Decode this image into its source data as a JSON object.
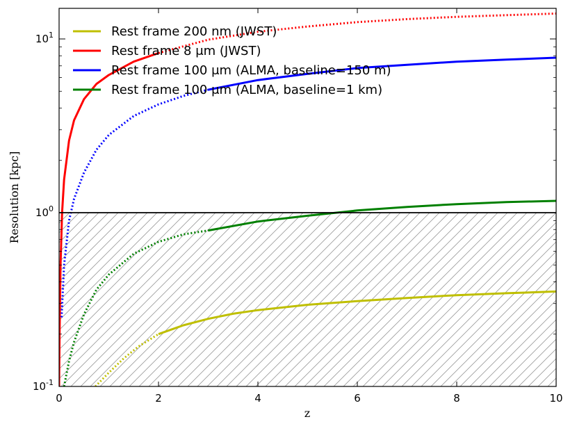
{
  "chart_data": {
    "type": "line",
    "xlabel": "z",
    "ylabel": "Resolution [kpc]",
    "xlim": [
      0,
      10
    ],
    "ylim": [
      0.1,
      15
    ],
    "yscale": "log",
    "x_ticks": [
      "0",
      "2",
      "4",
      "6",
      "8",
      "10"
    ],
    "y_ticks": [
      {
        "base": "10",
        "exp": "-1"
      },
      {
        "base": "10",
        "exp": "0"
      },
      {
        "base": "10",
        "exp": "1"
      }
    ],
    "reference_line_y": 1,
    "hatched_region": "below 1 kpc",
    "legend_position": "top-left",
    "series": [
      {
        "name": "Rest frame 200 nm (JWST)",
        "color": "#bfbf00",
        "dotted_x": [
          0.73,
          1.0,
          1.3,
          1.6,
          2.0
        ],
        "dotted_y": [
          0.1,
          0.12,
          0.145,
          0.17,
          0.2
        ],
        "solid_x": [
          2.0,
          2.5,
          3.0,
          3.5,
          4.0,
          5.0,
          6.0,
          7.0,
          8.0,
          9.0,
          10.0
        ],
        "solid_y": [
          0.2,
          0.225,
          0.245,
          0.262,
          0.275,
          0.295,
          0.31,
          0.323,
          0.335,
          0.344,
          0.352
        ]
      },
      {
        "name": "Rest frame 8 μm (JWST)",
        "color": "#ff0000",
        "solid_x": [
          0.0,
          0.01,
          0.03,
          0.06,
          0.1,
          0.2,
          0.3,
          0.5,
          0.75,
          1.0,
          1.5,
          2.0
        ],
        "solid_y": [
          0.1,
          0.2,
          0.5,
          1.0,
          1.55,
          2.6,
          3.4,
          4.5,
          5.5,
          6.2,
          7.4,
          8.3
        ],
        "dotted_x": [
          2.0,
          3.0,
          4.0,
          5.0,
          6.0,
          7.0,
          8.0,
          9.0,
          10.0
        ],
        "dotted_y": [
          8.3,
          9.9,
          11.0,
          11.8,
          12.5,
          13.0,
          13.4,
          13.7,
          14.0
        ]
      },
      {
        "name": "Rest frame 100 μm (ALMA, baseline=150 m)",
        "color": "#0000ff",
        "dotted_x": [
          0.05,
          0.1,
          0.2,
          0.3,
          0.5,
          0.75,
          1.0,
          1.5,
          2.0,
          2.5,
          3.0
        ],
        "dotted_y": [
          0.25,
          0.5,
          0.9,
          1.2,
          1.7,
          2.3,
          2.8,
          3.6,
          4.2,
          4.7,
          5.1
        ],
        "solid_x": [
          3.0,
          4.0,
          5.0,
          6.0,
          7.0,
          8.0,
          9.0,
          10.0
        ],
        "solid_y": [
          5.1,
          5.8,
          6.3,
          6.8,
          7.1,
          7.4,
          7.6,
          7.8
        ]
      },
      {
        "name": "Rest frame 100 μm (ALMA, baseline=1 km)",
        "color": "#008000",
        "dotted_x": [
          0.1,
          0.2,
          0.3,
          0.5,
          0.75,
          1.0,
          1.5,
          2.0,
          2.5,
          3.0
        ],
        "dotted_y": [
          0.1,
          0.14,
          0.18,
          0.26,
          0.36,
          0.44,
          0.58,
          0.68,
          0.75,
          0.79
        ],
        "solid_x": [
          3.0,
          4.0,
          5.0,
          6.0,
          7.0,
          8.0,
          9.0,
          10.0
        ],
        "solid_y": [
          0.79,
          0.89,
          0.96,
          1.03,
          1.08,
          1.12,
          1.15,
          1.17
        ]
      }
    ]
  }
}
